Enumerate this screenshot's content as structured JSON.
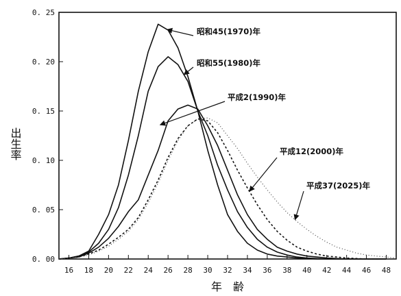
{
  "chart_data": {
    "type": "line",
    "title": "",
    "xlabel": "年　齢",
    "ylabel": "出生率",
    "xlim": [
      15,
      49
    ],
    "ylim": [
      0,
      0.25
    ],
    "x_ticks": [
      16,
      18,
      20,
      22,
      24,
      26,
      28,
      30,
      32,
      34,
      36,
      38,
      40,
      42,
      44,
      46,
      48
    ],
    "y_ticks": [
      0.0,
      0.05,
      0.1,
      0.15,
      0.2,
      0.25
    ],
    "y_tick_labels": [
      "0. 00",
      "0. 05",
      "0. 10",
      "0. 15",
      "0. 20",
      "0. 25"
    ],
    "grid": false,
    "series": [
      {
        "name": "昭和45(1970)年",
        "style": "solid",
        "x": [
          15,
          16,
          17,
          18,
          19,
          20,
          21,
          22,
          23,
          24,
          25,
          26,
          27,
          28,
          29,
          30,
          31,
          32,
          33,
          34,
          35,
          36,
          37,
          38,
          39,
          40,
          41,
          42,
          43,
          44,
          45,
          46,
          47,
          48
        ],
        "y": [
          0,
          0.001,
          0.003,
          0.008,
          0.025,
          0.045,
          0.075,
          0.12,
          0.17,
          0.21,
          0.238,
          0.232,
          0.214,
          0.185,
          0.15,
          0.11,
          0.075,
          0.045,
          0.028,
          0.016,
          0.009,
          0.005,
          0.003,
          0.002,
          0.001,
          0.0005,
          0,
          0,
          0,
          0,
          0,
          0,
          0,
          0
        ]
      },
      {
        "name": "昭和55(1980)年",
        "style": "solid",
        "x": [
          15,
          16,
          17,
          18,
          19,
          20,
          21,
          22,
          23,
          24,
          25,
          26,
          27,
          28,
          29,
          30,
          31,
          32,
          33,
          34,
          35,
          36,
          37,
          38,
          39,
          40,
          41,
          42,
          43,
          44,
          45,
          46,
          47,
          48
        ],
        "y": [
          0,
          0.001,
          0.003,
          0.007,
          0.016,
          0.03,
          0.052,
          0.085,
          0.125,
          0.17,
          0.195,
          0.205,
          0.197,
          0.18,
          0.15,
          0.125,
          0.095,
          0.07,
          0.048,
          0.032,
          0.02,
          0.012,
          0.007,
          0.004,
          0.002,
          0.001,
          0.0005,
          0,
          0,
          0,
          0,
          0,
          0,
          0
        ]
      },
      {
        "name": "平成2(1990)年",
        "style": "solid",
        "x": [
          15,
          16,
          17,
          18,
          19,
          20,
          21,
          22,
          23,
          24,
          25,
          26,
          27,
          28,
          29,
          30,
          31,
          32,
          33,
          34,
          35,
          36,
          37,
          38,
          39,
          40,
          41,
          42,
          43,
          44,
          45,
          46,
          47,
          48
        ],
        "y": [
          0,
          0.001,
          0.002,
          0.006,
          0.012,
          0.021,
          0.033,
          0.048,
          0.06,
          0.085,
          0.11,
          0.14,
          0.152,
          0.156,
          0.152,
          0.135,
          0.115,
          0.09,
          0.065,
          0.045,
          0.03,
          0.02,
          0.012,
          0.008,
          0.005,
          0.003,
          0.002,
          0.001,
          0.0005,
          0,
          0,
          0,
          0,
          0
        ]
      },
      {
        "name": "平成12(2000)年",
        "style": "dashed",
        "x": [
          15,
          16,
          17,
          18,
          19,
          20,
          21,
          22,
          23,
          24,
          25,
          26,
          27,
          28,
          29,
          30,
          31,
          32,
          33,
          34,
          35,
          36,
          37,
          38,
          39,
          40,
          41,
          42,
          43,
          44,
          45,
          46,
          47,
          48
        ],
        "y": [
          0,
          0.001,
          0.002,
          0.005,
          0.009,
          0.015,
          0.022,
          0.03,
          0.042,
          0.06,
          0.08,
          0.103,
          0.122,
          0.135,
          0.142,
          0.14,
          0.128,
          0.11,
          0.09,
          0.072,
          0.055,
          0.04,
          0.028,
          0.019,
          0.012,
          0.008,
          0.005,
          0.003,
          0.002,
          0.001,
          0.0005,
          0,
          0,
          0
        ]
      },
      {
        "name": "平成37(2025)年",
        "style": "dotted",
        "x": [
          15,
          16,
          17,
          18,
          19,
          20,
          21,
          22,
          23,
          24,
          25,
          26,
          27,
          28,
          29,
          30,
          31,
          32,
          33,
          34,
          35,
          36,
          37,
          38,
          39,
          40,
          41,
          42,
          43,
          44,
          45,
          46,
          47,
          48,
          49
        ],
        "y": [
          0,
          0.001,
          0.002,
          0.004,
          0.008,
          0.013,
          0.02,
          0.028,
          0.04,
          0.057,
          0.077,
          0.1,
          0.12,
          0.135,
          0.142,
          0.143,
          0.138,
          0.125,
          0.112,
          0.097,
          0.083,
          0.07,
          0.058,
          0.047,
          0.038,
          0.03,
          0.023,
          0.017,
          0.012,
          0.009,
          0.006,
          0.004,
          0.003,
          0.002,
          0.001
        ]
      }
    ],
    "annotations": [
      {
        "text": "昭和45(1970)年",
        "series": 0
      },
      {
        "text": "昭和55(1980)年",
        "series": 1
      },
      {
        "text": "平成2(1990)年",
        "series": 2
      },
      {
        "text": "平成12(2000)年",
        "series": 3
      },
      {
        "text": "平成37(2025)年",
        "series": 4
      }
    ]
  }
}
